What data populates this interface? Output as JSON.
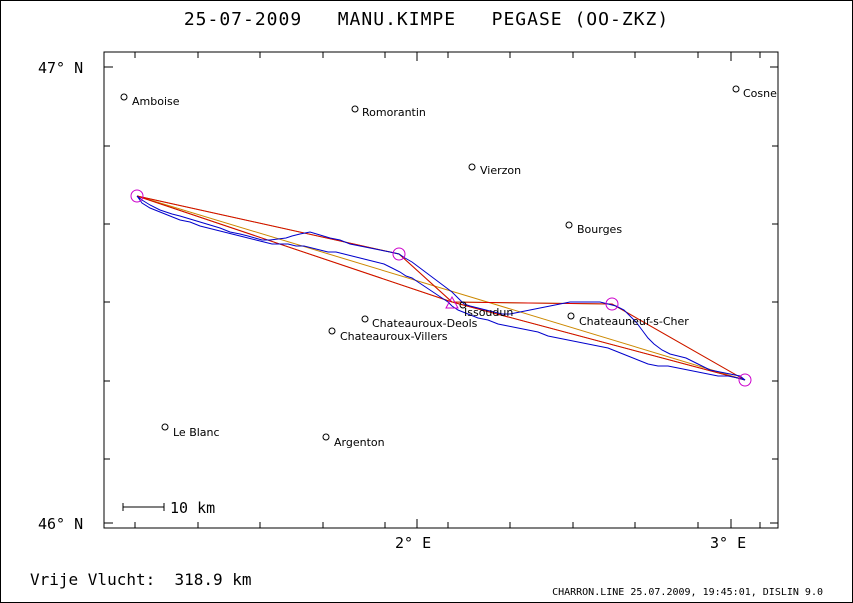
{
  "header": {
    "date": "25-07-2009",
    "pilot": "MANU.KIMPE",
    "glider": "PEGASE (OO-ZKZ)"
  },
  "axes": {
    "lat_top": "47° N",
    "lat_bottom": "46° N",
    "lon_left": "2° E",
    "lon_right": "3° E"
  },
  "scale_bar": "10 km",
  "footer": {
    "distance_label": "Vrije Vlucht:",
    "distance_value": "318.9 km",
    "credit": "CHARRON.LINE 25.07.2009, 19:45:01, DISLIN 9.0"
  },
  "towns": [
    {
      "name": "Amboise"
    },
    {
      "name": "Romorantin"
    },
    {
      "name": "Vierzon"
    },
    {
      "name": "Bourges"
    },
    {
      "name": "Cosne"
    },
    {
      "name": "Issoudun"
    },
    {
      "name": "Chateauroux-Deols"
    },
    {
      "name": "Chateauroux-Villers"
    },
    {
      "name": "Chateauneuf-s-Cher"
    },
    {
      "name": "Le Blanc"
    },
    {
      "name": "Argenton"
    }
  ],
  "colors": {
    "track": "#0000cc",
    "task_red": "#e00000",
    "task_green": "#66dd00",
    "task_orange": "#cc8800",
    "turnpoint": "#cc00cc"
  }
}
